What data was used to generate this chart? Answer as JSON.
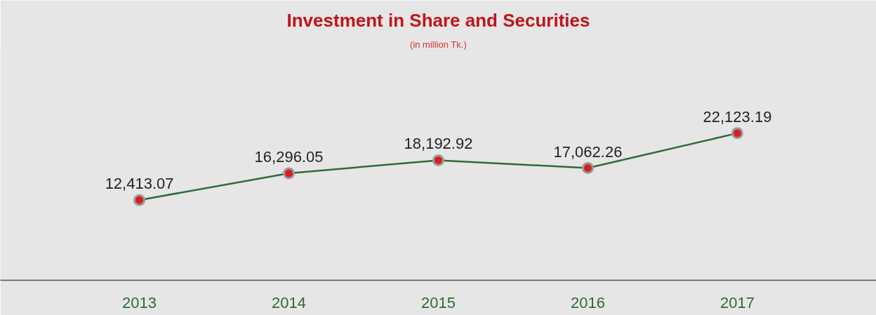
{
  "chart_data": {
    "type": "line",
    "title": "Investment in Share and Securities",
    "subtitle": "(in million Tk.)",
    "categories": [
      "2013",
      "2014",
      "2015",
      "2016",
      "2017"
    ],
    "series": [
      {
        "color": "#2e6b3a",
        "values": [
          12413.07,
          16296.05,
          18192.92,
          17062.26,
          22123.19
        ],
        "value_labels": [
          "12,413.07",
          "16,296.05",
          "18,192.92",
          "17,062.26",
          "22,123.19"
        ]
      }
    ],
    "tick_labels": "x",
    "marker": "circle",
    "line_style": "solid"
  }
}
